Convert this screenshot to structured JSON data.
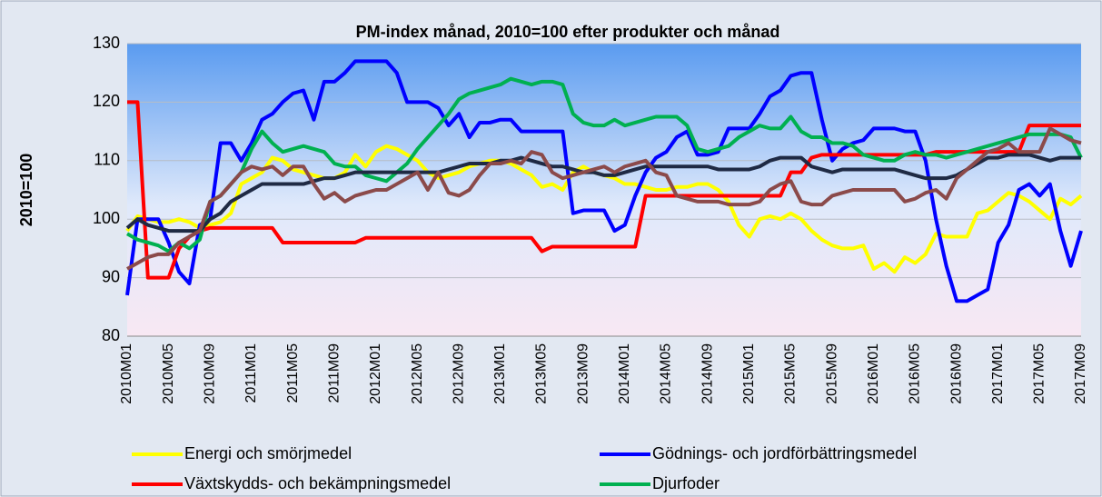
{
  "chart_data": {
    "type": "line",
    "title": "PM-index månad, 2010=100 efter produkter och månad",
    "ylabel": "2010=100",
    "ylim": [
      80,
      130
    ],
    "yticks": [
      80,
      90,
      100,
      110,
      120,
      130
    ],
    "grid": true,
    "categories": [
      "2010M01",
      null,
      null,
      null,
      "2010M05",
      null,
      null,
      null,
      "2010M09",
      null,
      null,
      null,
      "2011M01",
      null,
      null,
      null,
      "2011M05",
      null,
      null,
      null,
      "2011M09",
      null,
      null,
      null,
      "2012M01",
      null,
      null,
      null,
      "2012M05",
      null,
      null,
      null,
      "2012M09",
      null,
      null,
      null,
      "2013M01",
      null,
      null,
      null,
      "2013M05",
      null,
      null,
      null,
      "2013M09",
      null,
      null,
      null,
      "2014M01",
      null,
      null,
      null,
      "2014M05",
      null,
      null,
      null,
      "2014M09",
      null,
      null,
      null,
      "2015M01",
      null,
      null,
      null,
      "2015M05",
      null,
      null,
      null,
      "2015M09",
      null,
      null,
      null,
      "2016M01",
      null,
      null,
      null,
      "2016M05",
      null,
      null,
      null,
      "2016M09",
      null,
      null,
      null,
      "2017M01",
      null,
      null,
      null,
      "2017M05",
      null,
      null,
      null,
      "2017M09"
    ],
    "series": [
      {
        "name": "Energi och smörjmedel",
        "color": "#ffff00",
        "values": [
          98,
          100.5,
          100,
          99.5,
          99.5,
          100,
          99.5,
          98.5,
          99,
          99.5,
          101,
          106,
          107,
          108,
          110.5,
          110,
          108.5,
          108,
          107.5,
          107,
          107,
          108,
          111,
          109,
          111.5,
          112.5,
          112,
          111,
          110,
          108,
          107,
          107.5,
          108,
          109,
          109.5,
          110,
          110,
          109.5,
          108.5,
          107.5,
          105.5,
          106,
          105,
          108,
          109,
          108,
          107.5,
          107,
          106,
          106,
          105.5,
          105,
          105,
          105.5,
          105.5,
          106,
          106,
          105,
          103,
          99,
          97,
          100,
          100.5,
          100,
          101,
          100,
          98,
          96.5,
          95.5,
          95,
          95,
          95.5,
          91.5,
          92.5,
          91,
          93.5,
          92.5,
          94,
          97.5,
          97,
          97,
          97,
          101,
          101.5,
          103,
          104.5,
          104,
          103,
          101.5,
          100,
          103.5,
          102.5,
          104
        ]
      },
      {
        "name": "Gödnings- och jordförbättringsmedel",
        "color": "#0000ff",
        "values": [
          87,
          100,
          100,
          100,
          96,
          91,
          89,
          99,
          100,
          113,
          113,
          110,
          113,
          117,
          118,
          120,
          121.5,
          122,
          117,
          123.5,
          123.5,
          125,
          127,
          127,
          127,
          127,
          125,
          120,
          120,
          120,
          119,
          116,
          118,
          114,
          116.5,
          116.5,
          117,
          117,
          115,
          115,
          115,
          115,
          115,
          101,
          101.5,
          101.5,
          101.5,
          98,
          99,
          104,
          108,
          110.5,
          111.5,
          114,
          115,
          111,
          111,
          111.5,
          115.5,
          115.5,
          115.5,
          118,
          121,
          122,
          124.5,
          125,
          125,
          117,
          110,
          112,
          113,
          113.5,
          115.5,
          115.5,
          115.5,
          115,
          115,
          110,
          100,
          92,
          86,
          86,
          87,
          88,
          96,
          99,
          105,
          106,
          104,
          106,
          98,
          92,
          98
        ]
      },
      {
        "name": "Växtskydds- och bekämpningsmedel",
        "color": "#ff0000",
        "values": [
          120,
          120,
          90,
          90,
          90,
          95,
          97,
          98,
          98.5,
          98.5,
          98.5,
          98.5,
          98.5,
          98.5,
          98.5,
          96,
          96,
          96,
          96,
          96,
          96,
          96,
          96,
          96.8,
          96.8,
          96.8,
          96.8,
          96.8,
          96.8,
          96.8,
          96.8,
          96.8,
          96.8,
          96.8,
          96.8,
          96.8,
          96.8,
          96.8,
          96.8,
          96.8,
          94.5,
          95.3,
          95.3,
          95.3,
          95.3,
          95.3,
          95.3,
          95.3,
          95.3,
          95.3,
          104,
          104,
          104,
          104,
          104,
          104,
          104,
          104,
          104,
          104,
          104,
          104,
          104,
          104,
          108,
          108,
          110.5,
          111,
          111,
          111,
          111,
          111,
          111,
          111,
          111,
          111,
          111,
          111,
          111.5,
          111.5,
          111.5,
          111.5,
          111.5,
          111.5,
          111.5,
          111.5,
          111.5,
          116,
          116,
          116,
          116,
          116,
          116
        ]
      },
      {
        "name": "Djurfoder",
        "color": "#00b050",
        "values": [
          97.5,
          96.5,
          96,
          95.5,
          94.5,
          96,
          95,
          96.5,
          103,
          104,
          106,
          108,
          112,
          115,
          113,
          111.5,
          112,
          112.5,
          112,
          111.5,
          109.5,
          109,
          109,
          107.5,
          107,
          106.5,
          108,
          109.5,
          112,
          114,
          116,
          118,
          120.5,
          121.5,
          122,
          122.5,
          123,
          124,
          123.5,
          123,
          123.5,
          123.5,
          123,
          118,
          116.5,
          116,
          116,
          117,
          116,
          116.5,
          117,
          117.5,
          117.5,
          117.5,
          116,
          112,
          111.5,
          112,
          112.5,
          114,
          115,
          116,
          115.5,
          115.5,
          117.5,
          115,
          114,
          114,
          113,
          113,
          112.5,
          111,
          110.5,
          110,
          110,
          111,
          111.5,
          111,
          111,
          110.5,
          111,
          111.5,
          112,
          112.5,
          113,
          113.5,
          114,
          114.5,
          114.5,
          114.5,
          114.5,
          114,
          110.5
        ]
      },
      {
        "color": "#1f2a44",
        "values": [
          98.5,
          100,
          99,
          98.5,
          98,
          98,
          98,
          98,
          100,
          101,
          103,
          104,
          105,
          106,
          106,
          106,
          106,
          106,
          106.5,
          107,
          107,
          107.5,
          108,
          108,
          108,
          108,
          108,
          108,
          108,
          108,
          108,
          108.5,
          109,
          109.5,
          109.5,
          109.5,
          110,
          110,
          110.5,
          110,
          109.5,
          109,
          109,
          108.5,
          108,
          108,
          107.5,
          107.5,
          108,
          108.5,
          109,
          109,
          109,
          109,
          109,
          109,
          109,
          108.5,
          108.5,
          108.5,
          108.5,
          109,
          110,
          110.5,
          110.5,
          110.5,
          109,
          108.5,
          108,
          108.5,
          108.5,
          108.5,
          108.5,
          108.5,
          108.5,
          108,
          107.5,
          107,
          107,
          107,
          107.5,
          108.5,
          109.5,
          110.5,
          110.5,
          111,
          111,
          111,
          110.5,
          110,
          110.5,
          110.5,
          110.5
        ]
      },
      {
        "color": "#8b4a4a",
        "values": [
          91.5,
          92.5,
          93.5,
          94,
          94,
          96,
          97,
          98,
          103,
          104,
          106,
          108,
          109,
          108.5,
          109,
          107.5,
          109,
          109,
          106,
          103.5,
          104.5,
          103,
          104,
          104.5,
          105,
          105,
          106,
          107,
          108,
          105,
          108,
          104.5,
          104,
          105,
          107.5,
          109.5,
          109.5,
          110,
          109.5,
          111.5,
          111,
          108,
          107,
          107.5,
          108,
          108.5,
          109,
          108,
          109,
          109.5,
          110,
          108,
          107.5,
          104,
          103.5,
          103,
          103,
          103,
          102.5,
          102.5,
          102.5,
          103,
          105,
          106,
          106.5,
          103,
          102.5,
          102.5,
          104,
          104.5,
          105,
          105,
          105,
          105,
          105,
          103,
          103.5,
          104.5,
          105,
          103.5,
          107,
          108.5,
          110,
          111.5,
          112,
          113,
          111.5,
          111.5,
          111.5,
          115.5,
          114.5,
          113.5,
          113
        ]
      }
    ]
  }
}
